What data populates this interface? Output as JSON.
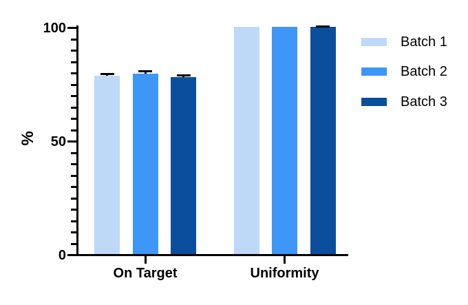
{
  "chart_data": {
    "type": "bar",
    "title": "",
    "ylabel": "%",
    "xlabel": "",
    "categories": [
      "On Target",
      "Uniformity"
    ],
    "series": [
      {
        "name": "Batch 1",
        "color": "#BED8F7",
        "values": [
          78.5,
          100
        ],
        "errors": [
          0.8,
          0
        ]
      },
      {
        "name": "Batch 2",
        "color": "#3E97F6",
        "values": [
          79.5,
          100
        ],
        "errors": [
          0.9,
          0
        ]
      },
      {
        "name": "Batch 3",
        "color": "#0A4E9D",
        "values": [
          78.0,
          100
        ],
        "errors": [
          0.7,
          0.3
        ]
      }
    ],
    "ylim": [
      0,
      100
    ],
    "yticks_major": [
      0,
      50,
      100
    ],
    "ytick_minor_step": 5,
    "grid": false,
    "legend_position": "right",
    "axis_color": "#000000",
    "error_bar_color": "#000000",
    "background_color": "#ffffff"
  }
}
